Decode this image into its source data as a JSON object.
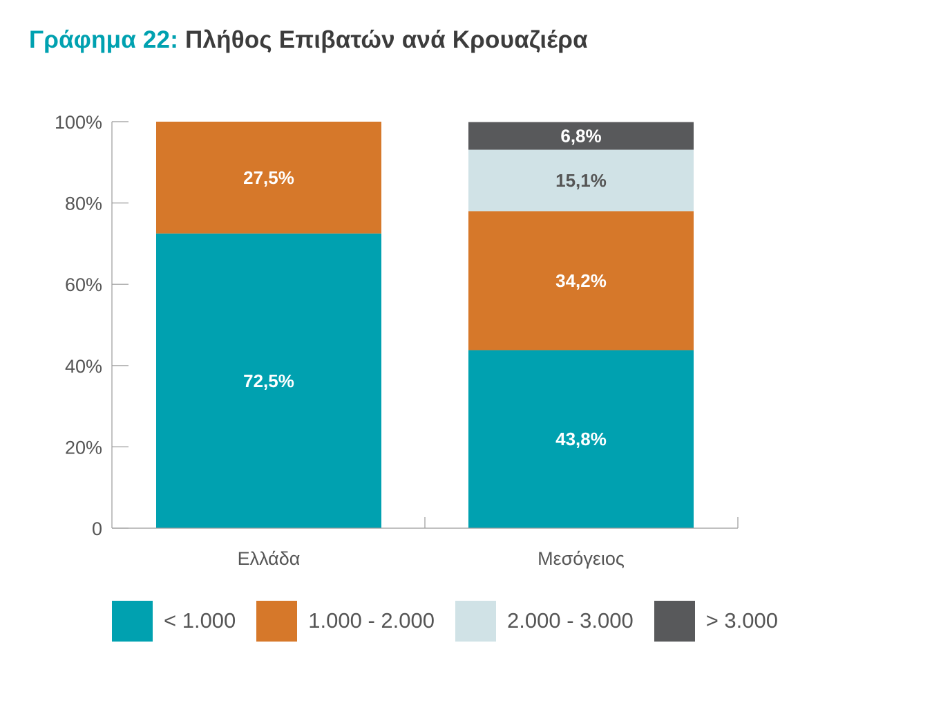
{
  "title": {
    "prefix": "Γράφημα 22:",
    "text": "Πλήθος Επιβατών ανά Κρουαζιέρα"
  },
  "chart_data": {
    "type": "bar",
    "stacked": true,
    "categories": [
      "Ελλάδα",
      "Μεσόγειος"
    ],
    "series": [
      {
        "name": "< 1.000",
        "color": "#00a1b0",
        "label_color": "#ffffff",
        "values": [
          72.5,
          43.8
        ],
        "labels": [
          "72,5%",
          "43,8%"
        ]
      },
      {
        "name": "1.000 - 2.000",
        "color": "#d6782a",
        "label_color": "#ffffff",
        "values": [
          27.5,
          34.2
        ],
        "labels": [
          "27,5%",
          "34,2%"
        ]
      },
      {
        "name": "2.000 - 3.000",
        "color": "#d0e2e6",
        "label_color": "#555555",
        "values": [
          0,
          15.1
        ],
        "labels": [
          "",
          "15,1%"
        ]
      },
      {
        "name": "> 3.000",
        "color": "#58595b",
        "label_color": "#ffffff",
        "values": [
          0,
          6.8
        ],
        "labels": [
          "",
          "6,8%"
        ]
      }
    ],
    "ylim": [
      0,
      100
    ],
    "yticks": [
      0,
      20,
      40,
      60,
      80,
      100
    ],
    "ytick_labels": [
      "0",
      "20%",
      "40%",
      "60%",
      "80%",
      "100%"
    ],
    "xlabel": "",
    "ylabel": "",
    "grid": false,
    "legend_position": "bottom"
  }
}
